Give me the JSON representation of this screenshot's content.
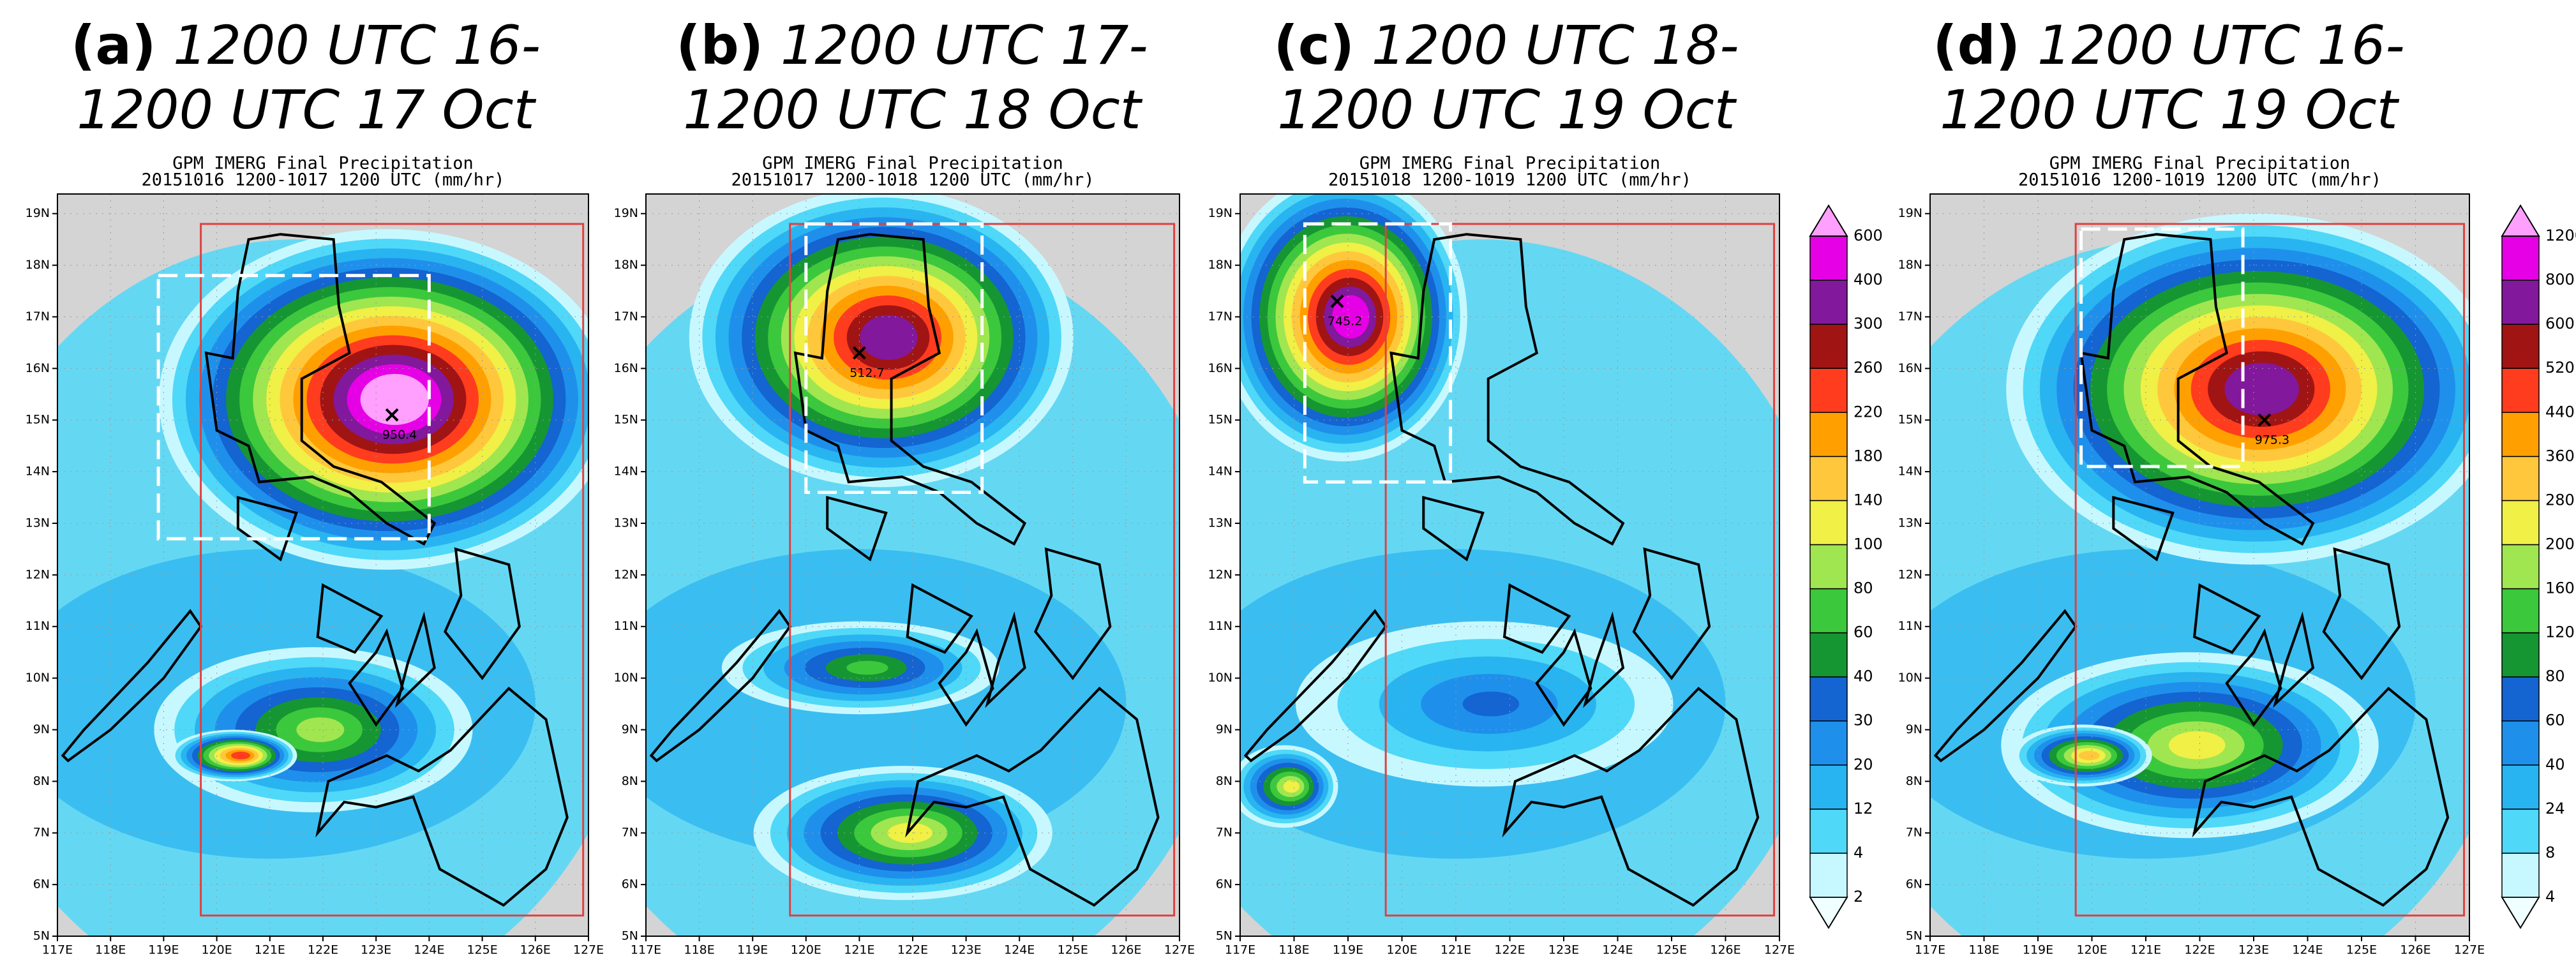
{
  "panels": [
    {
      "label": "(a)",
      "title_lines": [
        "1200 UTC 16-",
        "1200 UTC 17 Oct"
      ],
      "subtitle_lines": [
        "GPM  IMERG Final Precipitation",
        "20151016  1200-1017  1200 UTC  (mm/hr)"
      ],
      "max_label": "950.4"
    },
    {
      "label": "(b)",
      "title_lines": [
        "1200 UTC 17-",
        "1200 UTC 18 Oct"
      ],
      "subtitle_lines": [
        "GPM  IMERG Final Precipitation",
        "20151017  1200-1018  1200 UTC  (mm/hr)"
      ],
      "max_label": "512.7"
    },
    {
      "label": "(c)",
      "title_lines": [
        "1200 UTC 18-",
        "1200 UTC 19 Oct"
      ],
      "subtitle_lines": [
        "GPM  IMERG Final Precipitation",
        "20151018  1200-1019  1200 UTC  (mm/hr)"
      ],
      "max_label": "745.2"
    },
    {
      "label": "(d)",
      "title_lines": [
        "1200 UTC 16-",
        "1200 UTC 19 Oct"
      ],
      "subtitle_lines": [
        "GPM  IMERG Final Precipitation",
        "20151016  1200-1019  1200 UTC  (mm/hr)"
      ],
      "max_label": "975.3"
    }
  ],
  "lon_labels": [
    "117E",
    "118E",
    "119E",
    "120E",
    "121E",
    "122E",
    "123E",
    "124E",
    "125E",
    "126E",
    "127E"
  ],
  "lat_labels": [
    "5N",
    "6N",
    "7N",
    "8N",
    "9N",
    "10N",
    "11N",
    "12N",
    "13N",
    "14N",
    "15N",
    "16N",
    "17N",
    "18N",
    "19N"
  ],
  "colorbars": [
    {
      "levels": [
        2,
        4,
        12,
        20,
        30,
        40,
        60,
        80,
        100,
        140,
        180,
        220,
        260,
        300,
        400,
        600
      ],
      "colors": [
        "#f0ffff",
        "#c8f8ff",
        "#50d8f8",
        "#28b4f0",
        "#1e90ec",
        "#1464d2",
        "#169632",
        "#3cc83c",
        "#a0e650",
        "#f0f046",
        "#ffc83c",
        "#ffa000",
        "#ff3c1e",
        "#a01414",
        "#82189b",
        "#e600e6",
        "#ffa0ff"
      ]
    },
    {
      "levels": [
        4,
        8,
        24,
        40,
        60,
        80,
        120,
        160,
        200,
        280,
        360,
        440,
        520,
        600,
        800,
        1200
      ],
      "colors": [
        "#f0ffff",
        "#c8f8ff",
        "#50d8f8",
        "#28b4f0",
        "#1e90ec",
        "#1464d2",
        "#169632",
        "#3cc83c",
        "#a0e650",
        "#f0f046",
        "#ffc83c",
        "#ffa000",
        "#ff3c1e",
        "#a01414",
        "#82189b",
        "#e600e6",
        "#ffa0ff"
      ]
    }
  ]
}
